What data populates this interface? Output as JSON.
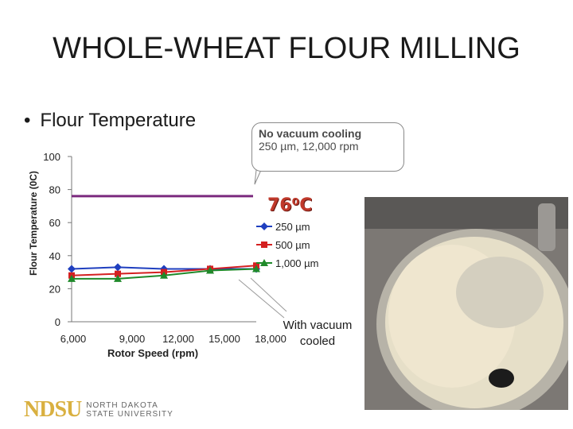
{
  "slide": {
    "title": "WHOLE-WHEAT FLOUR MILLING",
    "bullet": "Flour Temperature",
    "callout_line1": "No vacuum cooling",
    "callout_line2": "250 µm, 12,000 rpm",
    "temp_label": "76⁰C",
    "photo_caption_line1": "With vacuum",
    "photo_caption_line2": "cooled",
    "logo_text": "NDSU",
    "logo_sub1": "NORTH DAKOTA",
    "logo_sub2": "STATE UNIVERSITY"
  },
  "chart_data": {
    "type": "line",
    "xlabel": "Rotor Speed (rpm)",
    "ylabel": "Flour Temperature (0C)",
    "x": [
      6000,
      9000,
      12000,
      15000,
      18000
    ],
    "x_tick_labels": [
      "6,000",
      "9,000",
      "12,000",
      "15,000",
      "18,000"
    ],
    "ylim": [
      0,
      100
    ],
    "y_ticks": [
      0,
      20,
      40,
      60,
      80,
      100
    ],
    "reference_line": {
      "y": 76,
      "color": "#7b2a7e"
    },
    "legend_position": "right",
    "series": [
      {
        "name": "250 µm",
        "values": [
          32,
          33,
          32,
          32,
          32
        ],
        "color": "#1f3fbf",
        "marker": "diamond"
      },
      {
        "name": "500 µm",
        "values": [
          28,
          29,
          30,
          32,
          34
        ],
        "color": "#d42020",
        "marker": "square"
      },
      {
        "name": "1,000 µm",
        "values": [
          26,
          26,
          28,
          31,
          32
        ],
        "color": "#1f8a2a",
        "marker": "triangle"
      }
    ]
  }
}
